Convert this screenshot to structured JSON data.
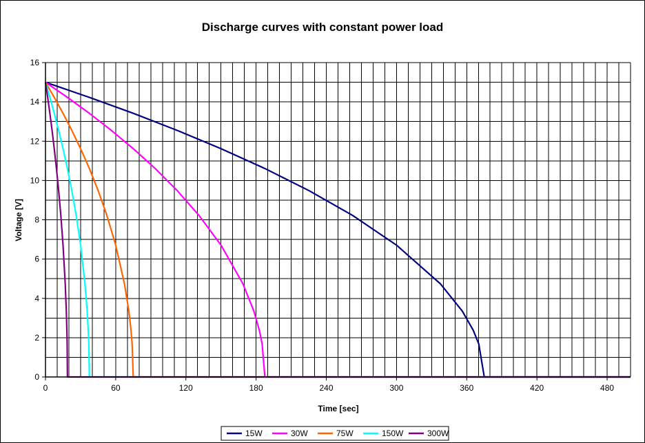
{
  "chart_data": {
    "type": "line",
    "title": "Discharge curves with constant power load",
    "xlabel": "Time [sec]",
    "ylabel": "Voltage [V]",
    "xlim": [
      0,
      500
    ],
    "ylim": [
      0,
      16
    ],
    "x_ticks": [
      0,
      60,
      120,
      180,
      240,
      300,
      360,
      420,
      480
    ],
    "y_ticks": [
      0,
      2,
      4,
      6,
      8,
      10,
      12,
      14,
      16
    ],
    "x_tick_labels": [
      "0",
      "60",
      "120",
      "180",
      "240",
      "300",
      "360",
      "420",
      "480"
    ],
    "y_tick_labels": [
      "0",
      "2",
      "4",
      "6",
      "8",
      "10",
      "12",
      "14",
      "16"
    ],
    "grid": true,
    "x_minor_step": 10,
    "y_minor_step": 1,
    "legend_position": "bottom",
    "series": [
      {
        "name": "15W",
        "color": "#000080",
        "x": [
          0,
          37.5,
          75,
          112.5,
          150,
          187.5,
          225,
          262.5,
          300,
          337.5,
          356.25,
          365.63,
          370.31,
          375,
          500
        ],
        "y": [
          15,
          14.23,
          13.42,
          12.55,
          11.62,
          10.61,
          9.49,
          8.22,
          6.71,
          4.74,
          3.35,
          2.37,
          1.68,
          0,
          0
        ]
      },
      {
        "name": "30W",
        "color": "#FF00FF",
        "x": [
          0,
          18.75,
          37.5,
          56.25,
          75,
          93.75,
          112.5,
          131.25,
          150,
          168.75,
          178.13,
          182.81,
          185.16,
          187.5,
          500
        ],
        "y": [
          15,
          14.23,
          13.42,
          12.55,
          11.62,
          10.61,
          9.49,
          8.22,
          6.71,
          4.74,
          3.35,
          2.37,
          1.68,
          0,
          0
        ]
      },
      {
        "name": "75W",
        "color": "#FF6600",
        "x": [
          0,
          7.5,
          15,
          22.5,
          30,
          37.5,
          45,
          52.5,
          60,
          67.5,
          71.25,
          73.13,
          74.06,
          75,
          500
        ],
        "y": [
          15,
          14.23,
          13.42,
          12.55,
          11.62,
          10.61,
          9.49,
          8.22,
          6.71,
          4.74,
          3.35,
          2.37,
          1.68,
          0,
          0
        ]
      },
      {
        "name": "150W",
        "color": "#00FFFF",
        "x": [
          0,
          3.75,
          7.5,
          11.25,
          15,
          18.75,
          22.5,
          26.25,
          30,
          33.75,
          35.63,
          36.56,
          37.03,
          37.5,
          500
        ],
        "y": [
          15,
          14.23,
          13.42,
          12.55,
          11.62,
          10.61,
          9.49,
          8.22,
          6.71,
          4.74,
          3.35,
          2.37,
          1.68,
          0,
          0
        ]
      },
      {
        "name": "300W",
        "color": "#800080",
        "x": [
          0,
          1.88,
          3.75,
          5.63,
          7.5,
          9.38,
          11.25,
          13.13,
          15,
          16.88,
          17.81,
          18.28,
          18.52,
          18.75,
          500
        ],
        "y": [
          15,
          14.23,
          13.42,
          12.55,
          11.62,
          10.61,
          9.49,
          8.22,
          6.71,
          4.74,
          3.35,
          2.37,
          1.68,
          0,
          0
        ]
      }
    ]
  }
}
